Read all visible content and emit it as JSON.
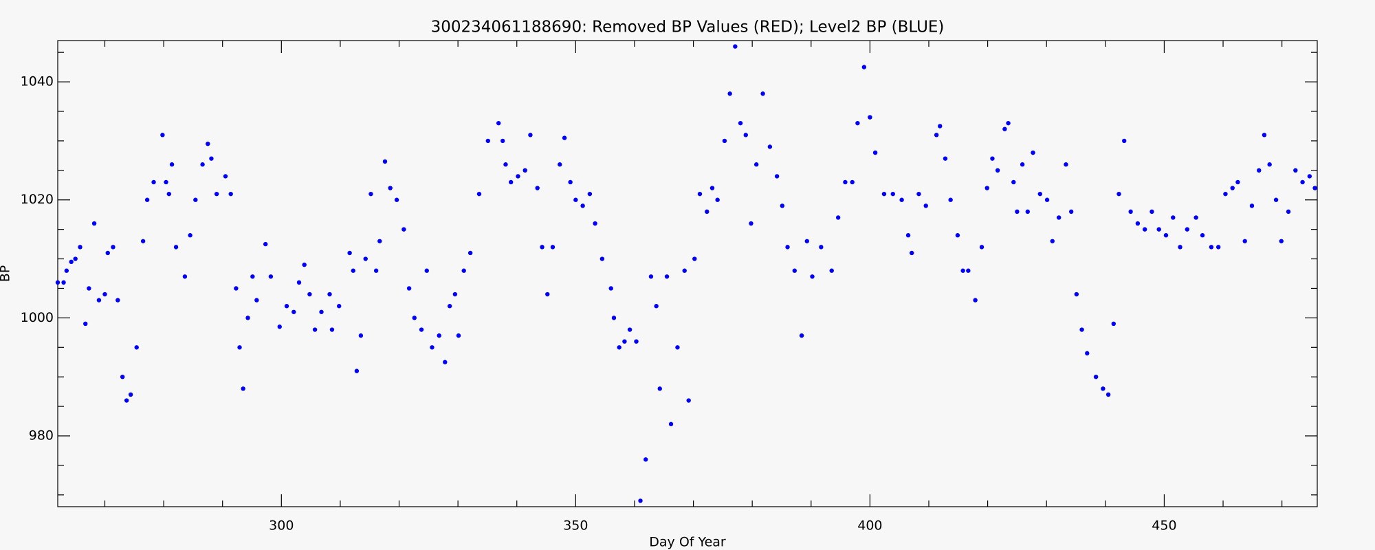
{
  "chart_data": {
    "type": "scatter",
    "title": "300234061188690: Removed BP Values (RED); Level2 BP (BLUE)",
    "x_label": "Day Of Year",
    "y_label": "BP",
    "xlim": [
      262,
      476
    ],
    "ylim": [
      968,
      1047
    ],
    "xticks": [
      300,
      350,
      400,
      450
    ],
    "yticks": [
      980,
      1000,
      1020,
      1040
    ],
    "xminorticks": [
      270,
      280,
      290,
      310,
      320,
      330,
      340,
      360,
      370,
      380,
      390,
      410,
      420,
      430,
      440,
      460,
      470
    ],
    "yminorticks": [
      970,
      975,
      985,
      990,
      995,
      1005,
      1010,
      1015,
      1025,
      1030,
      1035,
      1045
    ],
    "x": [
      262,
      263,
      263.5,
      264.3,
      265,
      265.8,
      266.7,
      267.3,
      268.2,
      269,
      270,
      270.5,
      271.4,
      272.2,
      273,
      273.7,
      274.4,
      275.4,
      276.5,
      277.2,
      278.3,
      279.8,
      280.4,
      280.9,
      281.4,
      282.1,
      283.6,
      284.5,
      285.4,
      286.6,
      287.5,
      288.1,
      289,
      290.5,
      291.4,
      292.3,
      292.9,
      293.5,
      294.3,
      295.1,
      295.8,
      297.3,
      298.2,
      299.7,
      300.9,
      302.1,
      303,
      303.9,
      304.8,
      305.7,
      306.8,
      308.2,
      308.6,
      309.8,
      311.6,
      312.2,
      312.8,
      313.5,
      314.3,
      315.2,
      316.1,
      316.7,
      317.6,
      318.5,
      319.6,
      320.8,
      321.7,
      322.6,
      323.8,
      324.7,
      325.6,
      326.8,
      327.8,
      328.6,
      329.5,
      330.1,
      331,
      332.1,
      333.6,
      335.1,
      336.9,
      337.6,
      338.1,
      339,
      340.2,
      341.4,
      342.3,
      343.5,
      344.3,
      345.2,
      346.1,
      347.3,
      348.1,
      349.1,
      350,
      351.2,
      352.4,
      353.3,
      354.5,
      356,
      356.5,
      357.4,
      358.3,
      359.2,
      360.3,
      361,
      361.9,
      362.8,
      363.7,
      364.3,
      365.5,
      366.2,
      367.3,
      368.5,
      369.2,
      370.2,
      371.1,
      372.3,
      373.2,
      374.1,
      375.3,
      376.2,
      377.1,
      378,
      378.9,
      379.8,
      380.7,
      381.8,
      383,
      384.2,
      385.1,
      386,
      387.2,
      388.4,
      389.3,
      390.2,
      391.7,
      393.5,
      394.6,
      395.8,
      397,
      397.9,
      399,
      400,
      400.9,
      402.4,
      403.9,
      405.4,
      406.5,
      407.1,
      408.3,
      409.5,
      411.3,
      411.9,
      412.8,
      413.7,
      414.9,
      415.8,
      416.7,
      417.9,
      419,
      419.9,
      420.8,
      421.7,
      422.9,
      423.5,
      424.4,
      425,
      425.9,
      426.8,
      427.7,
      428.9,
      430.1,
      431,
      432.1,
      433.3,
      434.2,
      435.1,
      436,
      436.9,
      438.4,
      439.6,
      440.5,
      441.4,
      442.3,
      443.2,
      444.3,
      445.5,
      446.7,
      447.9,
      449.1,
      450.3,
      451.5,
      452.7,
      453.9,
      455.4,
      456.5,
      458,
      459.2,
      460.4,
      461.6,
      462.5,
      463.7,
      464.9,
      466.1,
      467,
      467.9,
      469,
      469.9,
      471.1,
      472.3,
      473.5,
      474.7,
      475.6
    ],
    "series": [
      {
        "color": "#0000ff",
        "values": [
          1006,
          1006,
          1008,
          1009.5,
          1010,
          1012,
          999,
          1005,
          1016,
          1003,
          1004,
          1011,
          1012,
          1003,
          990,
          986,
          987,
          995,
          1013,
          1020,
          1023,
          1031,
          1023,
          1021,
          1026,
          1012,
          1007,
          1014,
          1020,
          1026,
          1029.5,
          1027,
          1021,
          1024,
          1021,
          1005,
          995,
          988,
          1000,
          1007,
          1003,
          1012.5,
          1007,
          998.5,
          1002,
          1001,
          1006,
          1009,
          1004,
          998,
          1001,
          1004,
          998,
          1002,
          1011,
          1008,
          991,
          997,
          1010,
          1021,
          1008,
          1013,
          1026.5,
          1022,
          1020,
          1015,
          1005,
          1000,
          998,
          1008,
          995,
          997,
          992.5,
          1002,
          1004,
          997,
          1008,
          1011,
          1021,
          1030,
          1033,
          1030,
          1026,
          1023,
          1024,
          1025,
          1031,
          1022,
          1012,
          1004,
          1012,
          1026,
          1030.5,
          1023,
          1020,
          1019,
          1021,
          1016,
          1010,
          1005,
          1000,
          995,
          996,
          998,
          996,
          969,
          976,
          1007,
          1002,
          988,
          1007,
          982,
          995,
          1008,
          986,
          1010,
          1021,
          1018,
          1022,
          1020,
          1030,
          1038,
          1046,
          1033,
          1031,
          1016,
          1026,
          1038,
          1029,
          1024,
          1019,
          1012,
          1008,
          997,
          1013,
          1007,
          1012,
          1008,
          1017,
          1023,
          1023,
          1033,
          1042.5,
          1034,
          1028,
          1021,
          1021,
          1020,
          1014,
          1011,
          1021,
          1019,
          1031,
          1032.5,
          1027,
          1020,
          1014,
          1008,
          1008,
          1003,
          1012,
          1022,
          1027,
          1025,
          1032,
          1033,
          1023,
          1018,
          1026,
          1018,
          1028,
          1021,
          1020,
          1013,
          1017,
          1026,
          1018,
          1004,
          998,
          994,
          990,
          988,
          987,
          999,
          1021,
          1030,
          1018,
          1016,
          1015,
          1018,
          1015,
          1014,
          1017,
          1012,
          1015,
          1017,
          1014,
          1012,
          1012,
          1021,
          1022,
          1023,
          1013,
          1019,
          1025,
          1031,
          1026,
          1020,
          1013,
          1018,
          1025,
          1023,
          1024,
          1022
        ]
      }
    ]
  }
}
